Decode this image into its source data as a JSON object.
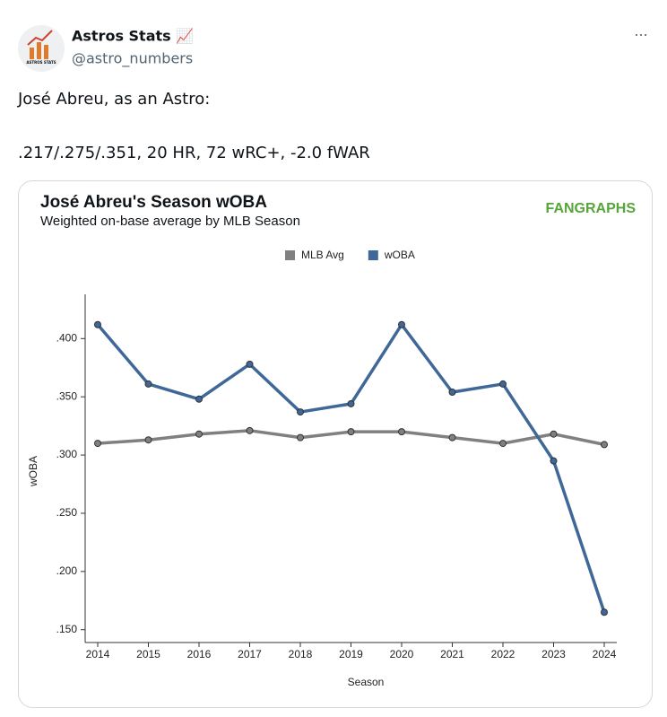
{
  "tweet": {
    "avatar_text": "ASTROS STATS",
    "name": "Astros Stats 📈",
    "handle": "@astro_numbers",
    "more": "···",
    "text_lines": [
      "José Abreu, as an Astro:",
      ".217/.275/.351, 20 HR, 72 wRC+, -2.0 fWAR"
    ]
  },
  "chart_data": {
    "type": "line",
    "title": "José Abreu's Season wOBA",
    "subtitle": "Weighted on-base average by MLB Season",
    "logo": "FANGRAPHS",
    "x_label": "Season",
    "y_label": "wOBA",
    "categories": [
      "2014",
      "2015",
      "2016",
      "2017",
      "2018",
      "2019",
      "2020",
      "2021",
      "2022",
      "2023",
      "2024"
    ],
    "series": [
      {
        "name": "MLB Avg",
        "color": "#808080",
        "values": [
          0.31,
          0.313,
          0.318,
          0.321,
          0.315,
          0.32,
          0.32,
          0.315,
          0.31,
          0.318,
          0.309
        ]
      },
      {
        "name": "wOBA",
        "color": "#3f6797",
        "values": [
          0.412,
          0.361,
          0.348,
          0.378,
          0.337,
          0.344,
          0.412,
          0.354,
          0.361,
          0.295,
          0.165
        ]
      }
    ],
    "ylim": [
      0.139,
      0.438
    ],
    "yticks": [
      {
        "value": 0.15,
        "label": ".150"
      },
      {
        "value": 0.2,
        "label": ".200"
      },
      {
        "value": 0.25,
        "label": ".250"
      },
      {
        "value": 0.3,
        "label": ".300"
      },
      {
        "value": 0.35,
        "label": ".350"
      },
      {
        "value": 0.4,
        "label": ".400"
      }
    ],
    "legend": "top",
    "grid": false
  }
}
